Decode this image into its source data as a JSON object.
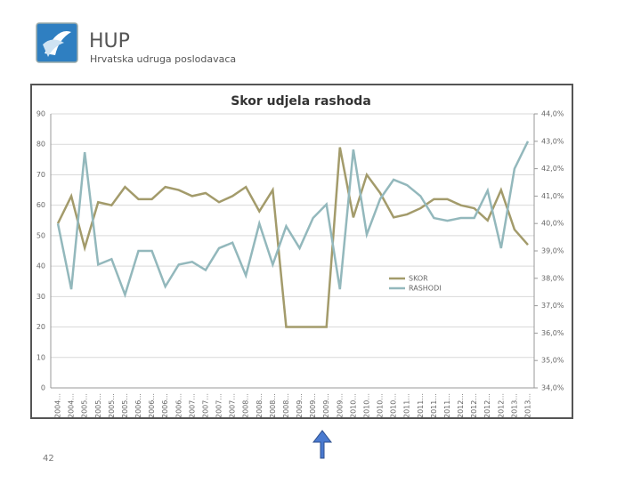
{
  "header": {
    "title": "HUP",
    "subtitle": "Hrvatska udruga poslodavaca"
  },
  "page_number": "42",
  "chart_data": {
    "type": "line",
    "title": "Skor udjela rashoda",
    "categories": [
      "2004...",
      "2004...",
      "2005...",
      "2005...",
      "2005...",
      "2005...",
      "2006...",
      "2006...",
      "2006...",
      "2006...",
      "2007...",
      "2007...",
      "2007...",
      "2007...",
      "2008...",
      "2008...",
      "2008...",
      "2008...",
      "2009...",
      "2009...",
      "2009...",
      "2009...",
      "2010...",
      "2010...",
      "2010...",
      "2010...",
      "2011...",
      "2011...",
      "2011...",
      "2011...",
      "2012...",
      "2012...",
      "2012...",
      "2012...",
      "2013...",
      "2013..."
    ],
    "series": [
      {
        "name": "SKOR",
        "color": "#a39b6b",
        "values": [
          54,
          63,
          46,
          61,
          60,
          66,
          62,
          62,
          66,
          65,
          63,
          64,
          61,
          63,
          66,
          58,
          65,
          20,
          20,
          20,
          20,
          79,
          56,
          70,
          64,
          56,
          57,
          59,
          62,
          62,
          60,
          59,
          55,
          65,
          52,
          47
        ]
      },
      {
        "name": "RASHODI",
        "color": "#93b8bc",
        "axis": "y2",
        "values": [
          40.0,
          37.6,
          42.6,
          38.5,
          38.7,
          37.4,
          39.0,
          39.0,
          37.7,
          38.5,
          38.6,
          38.3,
          39.1,
          39.3,
          38.1,
          40.0,
          38.5,
          39.9,
          39.1,
          40.2,
          40.7,
          37.6,
          42.7,
          39.6,
          40.9,
          41.6,
          41.4,
          41.0,
          40.2,
          40.1,
          40.2,
          40.2,
          41.2,
          39.1,
          42.0,
          43.0
        ]
      }
    ],
    "ylim": [
      0,
      90
    ],
    "yticks": [
      0,
      10,
      20,
      30,
      40,
      50,
      60,
      70,
      80,
      90
    ],
    "y2lim": [
      34,
      44
    ],
    "y2ticks": [
      {
        "value": 34,
        "label": "34,0%"
      },
      {
        "value": 35,
        "label": "35,0%"
      },
      {
        "value": 36,
        "label": "36,0%"
      },
      {
        "value": 37,
        "label": "37,0%"
      },
      {
        "value": 38,
        "label": "38,0%"
      },
      {
        "value": 39,
        "label": "39,0%"
      },
      {
        "value": 40,
        "label": "40,0%"
      },
      {
        "value": 41,
        "label": "41,0%"
      },
      {
        "value": 42,
        "label": "42,0%"
      },
      {
        "value": 43,
        "label": "43,0%"
      },
      {
        "value": 44,
        "label": "44,0%"
      }
    ],
    "grid": true,
    "legend": "inside-right"
  }
}
